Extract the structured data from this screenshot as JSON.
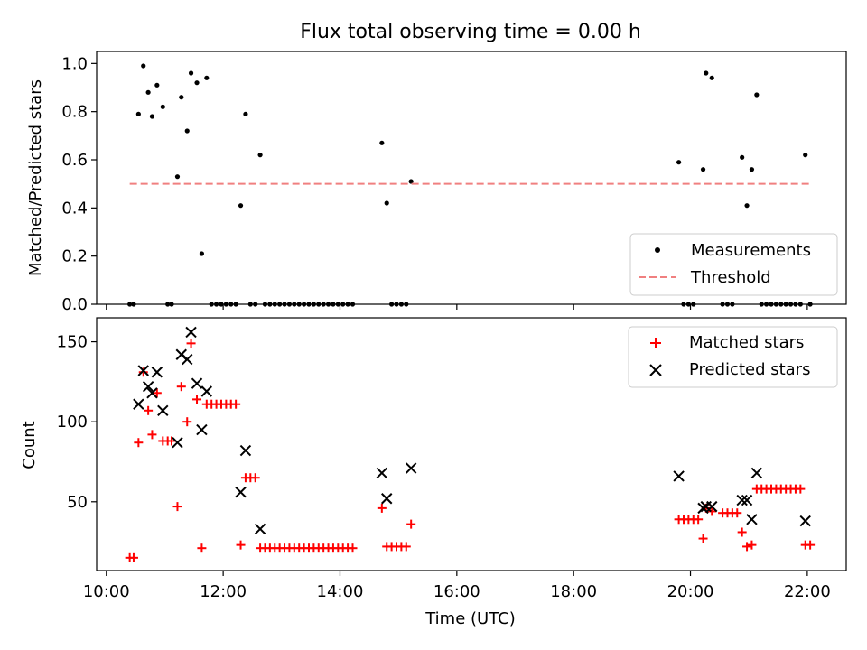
{
  "chart_data": [
    {
      "type": "scatter",
      "title": "Flux total observing time = 0.00 h",
      "xlabel": "",
      "ylabel": "Matched/Predicted stars",
      "xlim": [
        "09:50",
        "22:40"
      ],
      "ylim": [
        0.0,
        1.05
      ],
      "x_ticks": [
        "10:00",
        "12:00",
        "14:00",
        "16:00",
        "18:00",
        "20:00",
        "22:00"
      ],
      "y_ticks": [
        "0.0",
        "0.2",
        "0.4",
        "0.6",
        "0.8",
        "1.0"
      ],
      "legend_position": "lower-right",
      "series": [
        {
          "name": "Measurements",
          "marker": "dot",
          "color": "#000000",
          "points": [
            [
              "10:24",
              0.0
            ],
            [
              "10:28",
              0.0
            ],
            [
              "10:33",
              0.79
            ],
            [
              "10:38",
              0.99
            ],
            [
              "10:43",
              0.88
            ],
            [
              "10:47",
              0.78
            ],
            [
              "10:52",
              0.91
            ],
            [
              "10:58",
              0.82
            ],
            [
              "11:03",
              0.0
            ],
            [
              "11:07",
              0.0
            ],
            [
              "11:13",
              0.53
            ],
            [
              "11:17",
              0.86
            ],
            [
              "11:23",
              0.72
            ],
            [
              "11:27",
              0.96
            ],
            [
              "11:33",
              0.92
            ],
            [
              "11:38",
              0.21
            ],
            [
              "11:43",
              0.94
            ],
            [
              "11:48",
              0.0
            ],
            [
              "11:53",
              0.0
            ],
            [
              "11:58",
              0.0
            ],
            [
              "12:03",
              0.0
            ],
            [
              "12:08",
              0.0
            ],
            [
              "12:13",
              0.0
            ],
            [
              "12:18",
              0.41
            ],
            [
              "12:23",
              0.79
            ],
            [
              "12:28",
              0.0
            ],
            [
              "12:33",
              0.0
            ],
            [
              "12:38",
              0.62
            ],
            [
              "12:43",
              0.0
            ],
            [
              "12:48",
              0.0
            ],
            [
              "12:53",
              0.0
            ],
            [
              "12:58",
              0.0
            ],
            [
              "13:03",
              0.0
            ],
            [
              "13:08",
              0.0
            ],
            [
              "13:13",
              0.0
            ],
            [
              "13:18",
              0.0
            ],
            [
              "13:23",
              0.0
            ],
            [
              "13:28",
              0.0
            ],
            [
              "13:33",
              0.0
            ],
            [
              "13:38",
              0.0
            ],
            [
              "13:43",
              0.0
            ],
            [
              "13:48",
              0.0
            ],
            [
              "13:53",
              0.0
            ],
            [
              "13:58",
              0.0
            ],
            [
              "14:03",
              0.0
            ],
            [
              "14:08",
              0.0
            ],
            [
              "14:13",
              0.0
            ],
            [
              "14:43",
              0.67
            ],
            [
              "14:48",
              0.42
            ],
            [
              "14:53",
              0.0
            ],
            [
              "14:58",
              0.0
            ],
            [
              "15:03",
              0.0
            ],
            [
              "15:08",
              0.0
            ],
            [
              "15:13",
              0.51
            ],
            [
              "19:48",
              0.59
            ],
            [
              "19:53",
              0.0
            ],
            [
              "19:58",
              0.0
            ],
            [
              "20:03",
              0.0
            ],
            [
              "20:13",
              0.56
            ],
            [
              "20:16",
              0.96
            ],
            [
              "20:22",
              0.94
            ],
            [
              "20:33",
              0.0
            ],
            [
              "20:38",
              0.0
            ],
            [
              "20:43",
              0.0
            ],
            [
              "20:53",
              0.61
            ],
            [
              "20:58",
              0.41
            ],
            [
              "21:03",
              0.56
            ],
            [
              "21:08",
              0.87
            ],
            [
              "21:13",
              0.0
            ],
            [
              "21:18",
              0.0
            ],
            [
              "21:23",
              0.0
            ],
            [
              "21:28",
              0.0
            ],
            [
              "21:33",
              0.0
            ],
            [
              "21:38",
              0.0
            ],
            [
              "21:43",
              0.0
            ],
            [
              "21:48",
              0.0
            ],
            [
              "21:53",
              0.0
            ],
            [
              "21:58",
              0.62
            ],
            [
              "22:03",
              0.0
            ]
          ]
        },
        {
          "name": "Threshold",
          "line": "dashed",
          "color": "#f08080",
          "points": [
            [
              "10:24",
              0.5
            ],
            [
              "22:03",
              0.5
            ]
          ]
        }
      ]
    },
    {
      "type": "scatter",
      "title": "",
      "xlabel": "Time (UTC)",
      "ylabel": "Count",
      "xlim": [
        "09:50",
        "22:40"
      ],
      "ylim": [
        7,
        165
      ],
      "x_ticks": [
        "10:00",
        "12:00",
        "14:00",
        "16:00",
        "18:00",
        "20:00",
        "22:00"
      ],
      "y_ticks": [
        "50",
        "100",
        "150"
      ],
      "legend_position": "upper-right",
      "series": [
        {
          "name": "Matched stars",
          "marker": "plus",
          "color": "#ff0000",
          "points": [
            [
              "10:24",
              15
            ],
            [
              "10:28",
              15
            ],
            [
              "10:33",
              87
            ],
            [
              "10:38",
              131
            ],
            [
              "10:43",
              107
            ],
            [
              "10:47",
              92
            ],
            [
              "10:52",
              118
            ],
            [
              "10:58",
              88
            ],
            [
              "11:03",
              88
            ],
            [
              "11:07",
              88
            ],
            [
              "11:13",
              47
            ],
            [
              "11:17",
              122
            ],
            [
              "11:23",
              100
            ],
            [
              "11:27",
              149
            ],
            [
              "11:33",
              114
            ],
            [
              "11:38",
              21
            ],
            [
              "11:43",
              111
            ],
            [
              "11:48",
              111
            ],
            [
              "11:53",
              111
            ],
            [
              "11:58",
              111
            ],
            [
              "12:03",
              111
            ],
            [
              "12:08",
              111
            ],
            [
              "12:13",
              111
            ],
            [
              "12:18",
              23
            ],
            [
              "12:23",
              65
            ],
            [
              "12:28",
              65
            ],
            [
              "12:33",
              65
            ],
            [
              "12:38",
              21
            ],
            [
              "12:43",
              21
            ],
            [
              "12:48",
              21
            ],
            [
              "12:53",
              21
            ],
            [
              "12:58",
              21
            ],
            [
              "13:03",
              21
            ],
            [
              "13:08",
              21
            ],
            [
              "13:13",
              21
            ],
            [
              "13:18",
              21
            ],
            [
              "13:23",
              21
            ],
            [
              "13:28",
              21
            ],
            [
              "13:33",
              21
            ],
            [
              "13:38",
              21
            ],
            [
              "13:43",
              21
            ],
            [
              "13:48",
              21
            ],
            [
              "13:53",
              21
            ],
            [
              "13:58",
              21
            ],
            [
              "14:03",
              21
            ],
            [
              "14:08",
              21
            ],
            [
              "14:13",
              21
            ],
            [
              "14:43",
              46
            ],
            [
              "14:48",
              22
            ],
            [
              "14:53",
              22
            ],
            [
              "14:58",
              22
            ],
            [
              "15:03",
              22
            ],
            [
              "15:08",
              22
            ],
            [
              "15:13",
              36
            ],
            [
              "19:48",
              39
            ],
            [
              "19:53",
              39
            ],
            [
              "19:58",
              39
            ],
            [
              "20:03",
              39
            ],
            [
              "20:08",
              39
            ],
            [
              "20:13",
              27
            ],
            [
              "20:16",
              46
            ],
            [
              "20:22",
              44
            ],
            [
              "20:33",
              43
            ],
            [
              "20:38",
              43
            ],
            [
              "20:43",
              43
            ],
            [
              "20:48",
              43
            ],
            [
              "20:53",
              31
            ],
            [
              "20:58",
              22
            ],
            [
              "21:03",
              23
            ],
            [
              "21:08",
              58
            ],
            [
              "21:13",
              58
            ],
            [
              "21:18",
              58
            ],
            [
              "21:23",
              58
            ],
            [
              "21:28",
              58
            ],
            [
              "21:33",
              58
            ],
            [
              "21:38",
              58
            ],
            [
              "21:43",
              58
            ],
            [
              "21:48",
              58
            ],
            [
              "21:53",
              58
            ],
            [
              "21:58",
              23
            ],
            [
              "22:03",
              23
            ]
          ]
        },
        {
          "name": "Predicted stars",
          "marker": "x",
          "color": "#000000",
          "points": [
            [
              "10:33",
              111
            ],
            [
              "10:38",
              132
            ],
            [
              "10:43",
              122
            ],
            [
              "10:47",
              118
            ],
            [
              "10:52",
              131
            ],
            [
              "10:58",
              107
            ],
            [
              "11:13",
              87
            ],
            [
              "11:17",
              142
            ],
            [
              "11:23",
              139
            ],
            [
              "11:27",
              156
            ],
            [
              "11:33",
              124
            ],
            [
              "11:38",
              95
            ],
            [
              "11:43",
              119
            ],
            [
              "12:18",
              56
            ],
            [
              "12:23",
              82
            ],
            [
              "12:38",
              33
            ],
            [
              "14:43",
              68
            ],
            [
              "14:48",
              52
            ],
            [
              "15:13",
              71
            ],
            [
              "19:48",
              66
            ],
            [
              "20:13",
              46
            ],
            [
              "20:16",
              47
            ],
            [
              "20:22",
              47
            ],
            [
              "20:53",
              51
            ],
            [
              "20:58",
              51
            ],
            [
              "21:03",
              39
            ],
            [
              "21:08",
              68
            ],
            [
              "21:58",
              38
            ]
          ]
        }
      ]
    }
  ]
}
